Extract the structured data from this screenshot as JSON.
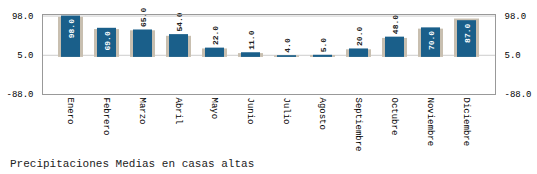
{
  "chart_data": {
    "type": "bar",
    "title": "Precipitaciones Medias en casas altas",
    "categories": [
      "Enero",
      "Febrero",
      "Marzo",
      "Abril",
      "Mayo",
      "Junio",
      "Julio",
      "Agosto",
      "Septiembre",
      "Octubre",
      "Noviembre",
      "Diciembre"
    ],
    "series": [
      {
        "color": "#c8bfb0",
        "values": [
          95.0,
          66.0,
          63.0,
          50.0,
          20.0,
          9.0,
          3.5,
          4.5,
          18.0,
          45.0,
          67.0,
          91.0
        ]
      },
      {
        "color": "#1a5f8a",
        "values": [
          98.0,
          69.0,
          65.0,
          54.0,
          22.0,
          11.0,
          4.0,
          5.0,
          20.0,
          48.0,
          70.0,
          87.0
        ],
        "data_labels": true,
        "value_labels": [
          "98.0",
          "69.0",
          "65.0",
          "54.0",
          "22.0",
          "11.0",
          "4.0",
          "5.0",
          "20.0",
          "48.0",
          "70.0",
          "87.0"
        ]
      }
    ],
    "ylim": [
      -88.0,
      101.72
    ],
    "yticks": [
      {
        "value": -88.0,
        "label": "-88.0"
      },
      {
        "value": 5.0,
        "label": "5.0"
      },
      {
        "value": 98.0,
        "label": "98.0"
      }
    ],
    "y2lim": [
      -88.0,
      101.72
    ],
    "y2ticks": [
      {
        "value": -88.0,
        "label": "-88.0"
      },
      {
        "value": 5.0,
        "label": "5.0"
      },
      {
        "value": 98.0,
        "label": "98.0"
      }
    ],
    "grid": true
  }
}
